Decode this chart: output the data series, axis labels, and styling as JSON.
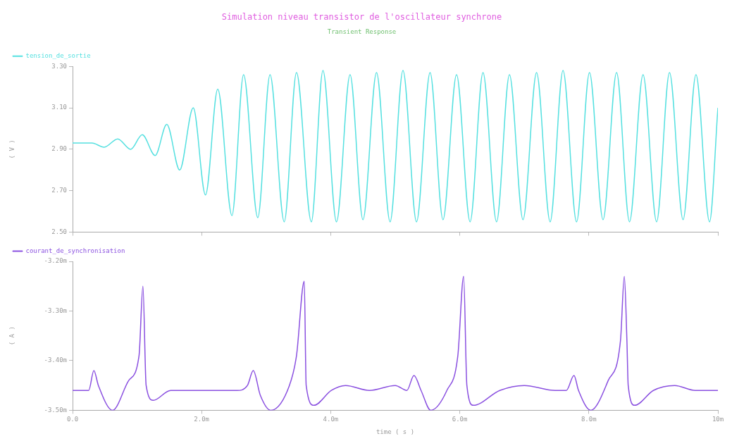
{
  "chart_data": [
    {
      "type": "line",
      "title": "Simulation niveau transistor de l'oscillateur synchrone",
      "subtitle": "Transient Response",
      "ylabel": "( V )",
      "xlim": [
        0,
        10
      ],
      "xticks": [
        0,
        2,
        4,
        6,
        8,
        10
      ],
      "ylim": [
        2.5,
        3.3
      ],
      "yticks": [
        {
          "value": 2.5,
          "label": "2.50"
        },
        {
          "value": 2.7,
          "label": "2.70"
        },
        {
          "value": 2.9,
          "label": "2.90"
        },
        {
          "value": 3.1,
          "label": "3.10"
        },
        {
          "value": 3.3,
          "label": "3.30"
        }
      ],
      "tick_labels": "y",
      "grid": false,
      "legend": "top left",
      "x": [
        0,
        0.3,
        0.49,
        0.7,
        0.9,
        1.08,
        1.28,
        1.46,
        1.66,
        1.87,
        2.06,
        2.25,
        2.47,
        2.65,
        2.87,
        3.06,
        3.28,
        3.47,
        3.7,
        3.88,
        4.09,
        4.3,
        4.5,
        4.71,
        4.92,
        5.12,
        5.33,
        5.54,
        5.74,
        5.95,
        6.16,
        6.36,
        6.57,
        6.77,
        6.98,
        7.19,
        7.4,
        7.6,
        7.81,
        8.01,
        8.22,
        8.43,
        8.63,
        8.84,
        9.05,
        9.25,
        9.46,
        9.66,
        9.87,
        10
      ],
      "series": [
        {
          "name": "tension_de_sortie",
          "color": "#55e0e0",
          "values": [
            2.93,
            2.93,
            2.91,
            2.95,
            2.9,
            2.97,
            2.87,
            3.02,
            2.8,
            3.1,
            2.68,
            3.19,
            2.58,
            3.26,
            2.57,
            3.26,
            2.55,
            3.27,
            2.55,
            3.28,
            2.55,
            3.26,
            2.56,
            3.27,
            2.55,
            3.28,
            2.55,
            3.27,
            2.56,
            3.26,
            2.55,
            3.27,
            2.55,
            3.26,
            2.56,
            3.27,
            2.55,
            3.28,
            2.55,
            3.27,
            2.56,
            3.27,
            2.55,
            3.26,
            2.55,
            3.27,
            2.56,
            3.26,
            2.55,
            3.1
          ]
        }
      ]
    },
    {
      "type": "line",
      "xlabel": "time ( s )",
      "ylabel": "( A )",
      "xlim": [
        0,
        10
      ],
      "xticks": [
        {
          "value": 0,
          "label": "0.0"
        },
        {
          "value": 2,
          "label": "2.0m"
        },
        {
          "value": 4,
          "label": "4.0m"
        },
        {
          "value": 6,
          "label": "6.0m"
        },
        {
          "value": 8,
          "label": "8.0m"
        },
        {
          "value": 10,
          "label": "10m"
        }
      ],
      "ylim": [
        -3.5,
        -3.2
      ],
      "yticks": [
        {
          "value": -3.5,
          "label": "-3.50m"
        },
        {
          "value": -3.4,
          "label": "-3.40m"
        },
        {
          "value": -3.3,
          "label": "-3.30m"
        },
        {
          "value": -3.2,
          "label": "-3.20m"
        }
      ],
      "grid": false,
      "legend": "top left",
      "x": [
        0,
        0.25,
        0.33,
        0.4,
        0.62,
        0.87,
        1.03,
        1.09,
        1.14,
        1.25,
        1.52,
        2.0,
        2.33,
        2.55,
        2.71,
        2.8,
        2.91,
        3.07,
        3.36,
        3.47,
        3.59,
        3.62,
        3.74,
        4.01,
        4.23,
        4.6,
        5.0,
        5.18,
        5.29,
        5.4,
        5.55,
        5.8,
        5.97,
        6.06,
        6.11,
        6.21,
        6.62,
        7.0,
        7.48,
        7.65,
        7.77,
        7.84,
        8.03,
        8.3,
        8.49,
        8.55,
        8.59,
        8.61,
        8.71,
        9.0,
        9.33,
        9.65,
        10
      ],
      "series": [
        {
          "name": "courant_de_synchronisation",
          "color": "#8a50e0",
          "values": [
            -3.46,
            -3.46,
            -3.42,
            -3.45,
            -3.5,
            -3.44,
            -3.39,
            -3.25,
            -3.45,
            -3.48,
            -3.46,
            -3.46,
            -3.46,
            -3.46,
            -3.45,
            -3.42,
            -3.47,
            -3.5,
            -3.45,
            -3.39,
            -3.24,
            -3.45,
            -3.49,
            -3.46,
            -3.45,
            -3.46,
            -3.45,
            -3.46,
            -3.43,
            -3.46,
            -3.5,
            -3.46,
            -3.39,
            -3.23,
            -3.45,
            -3.49,
            -3.46,
            -3.45,
            -3.46,
            -3.46,
            -3.43,
            -3.46,
            -3.5,
            -3.44,
            -3.36,
            -3.23,
            -3.36,
            -3.45,
            -3.49,
            -3.46,
            -3.45,
            -3.46,
            -3.46
          ]
        }
      ]
    }
  ]
}
